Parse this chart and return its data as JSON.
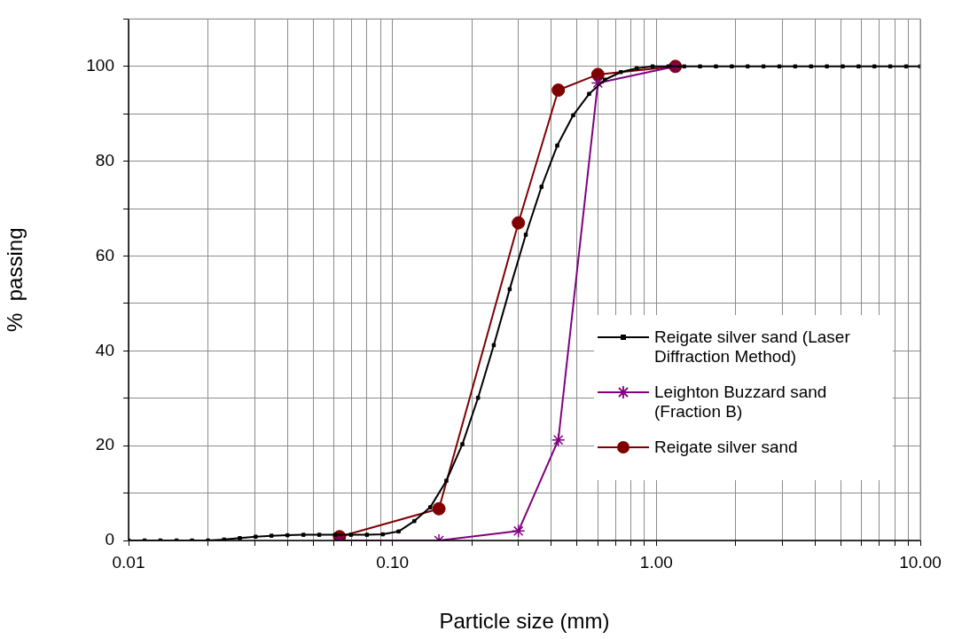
{
  "chart_data": {
    "type": "line",
    "xlabel": "Particle size (mm)",
    "ylabel": "%  passing",
    "log": "x",
    "grid": true,
    "legend": "bottom right",
    "line_style": "solid",
    "xlim": [
      0.01,
      10
    ],
    "xticks": [
      {
        "value": 0.01,
        "label": "0.01"
      },
      {
        "value": 0.02,
        "label": null
      },
      {
        "value": 0.03,
        "label": null
      },
      {
        "value": 0.04,
        "label": null
      },
      {
        "value": 0.05,
        "label": null
      },
      {
        "value": 0.06,
        "label": null
      },
      {
        "value": 0.07,
        "label": null
      },
      {
        "value": 0.08,
        "label": null
      },
      {
        "value": 0.09,
        "label": null
      },
      {
        "value": 0.1,
        "label": "0.10"
      },
      {
        "value": 0.2,
        "label": null
      },
      {
        "value": 0.3,
        "label": null
      },
      {
        "value": 0.4,
        "label": null
      },
      {
        "value": 0.5,
        "label": null
      },
      {
        "value": 0.6,
        "label": null
      },
      {
        "value": 0.7,
        "label": null
      },
      {
        "value": 0.8,
        "label": null
      },
      {
        "value": 0.9,
        "label": null
      },
      {
        "value": 1,
        "label": "1.00"
      },
      {
        "value": 2,
        "label": null
      },
      {
        "value": 3,
        "label": null
      },
      {
        "value": 4,
        "label": null
      },
      {
        "value": 5,
        "label": null
      },
      {
        "value": 6,
        "label": null
      },
      {
        "value": 7,
        "label": null
      },
      {
        "value": 8,
        "label": null
      },
      {
        "value": 9,
        "label": null
      },
      {
        "value": 10,
        "label": "10.00"
      }
    ],
    "ylim": [
      0,
      110
    ],
    "yticks": [
      0,
      {
        "value": 10,
        "label": null
      },
      20,
      {
        "value": 30,
        "label": null
      },
      40,
      {
        "value": 50,
        "label": null
      },
      60,
      {
        "value": 70,
        "label": null
      },
      80,
      {
        "value": 90,
        "label": null
      },
      100,
      {
        "value": 110,
        "label": null
      }
    ],
    "series": [
      {
        "name": "Reigate silver sand (Laser Diffraction Method)",
        "color": "#000000",
        "marker": "square",
        "x": [
          0.01,
          0.0115,
          0.0132,
          0.0152,
          0.0174,
          0.02,
          0.023,
          0.0264,
          0.0303,
          0.0348,
          0.04,
          0.046,
          0.0528,
          0.0606,
          0.0696,
          0.08,
          0.0919,
          0.1055,
          0.121,
          0.139,
          0.16,
          0.184,
          0.211,
          0.242,
          0.278,
          0.32,
          0.367,
          0.421,
          0.484,
          0.556,
          0.638,
          0.733,
          0.842,
          0.967,
          1.11,
          1.275,
          1.464,
          1.681,
          1.931,
          2.217,
          2.546,
          2.924,
          3.357,
          3.855,
          4.427,
          5.083,
          5.837,
          6.703,
          7.697,
          8.839,
          10
        ],
        "values": [
          0,
          0,
          0,
          0,
          0,
          0,
          0.2,
          0.5,
          0.8,
          1,
          1.1,
          1.2,
          1.2,
          1.2,
          1.2,
          1.2,
          1.3,
          1.9,
          4.1,
          7,
          12.6,
          20.3,
          30.1,
          41.2,
          53,
          64.5,
          74.6,
          83.3,
          89.7,
          94.2,
          97.2,
          98.8,
          99.6,
          100,
          100,
          100,
          100,
          100,
          100,
          100,
          100,
          100,
          100,
          100,
          100,
          100,
          100,
          100,
          100,
          100,
          100
        ]
      },
      {
        "name": "Leighton Buzzard sand (Fraction B)",
        "color": "#800080",
        "marker": "cross",
        "x": [
          0.063,
          0.15,
          0.3,
          0.425,
          0.6,
          1.18
        ],
        "values": [
          0,
          0,
          2,
          21.2,
          96.5,
          100
        ]
      },
      {
        "name": "Reigate silver sand",
        "color": "#800000",
        "marker": "circle",
        "x": [
          0.063,
          0.15,
          0.3,
          0.425,
          0.6,
          1.18
        ],
        "values": [
          0.8,
          6.7,
          67,
          95,
          98.3,
          100
        ]
      }
    ]
  }
}
